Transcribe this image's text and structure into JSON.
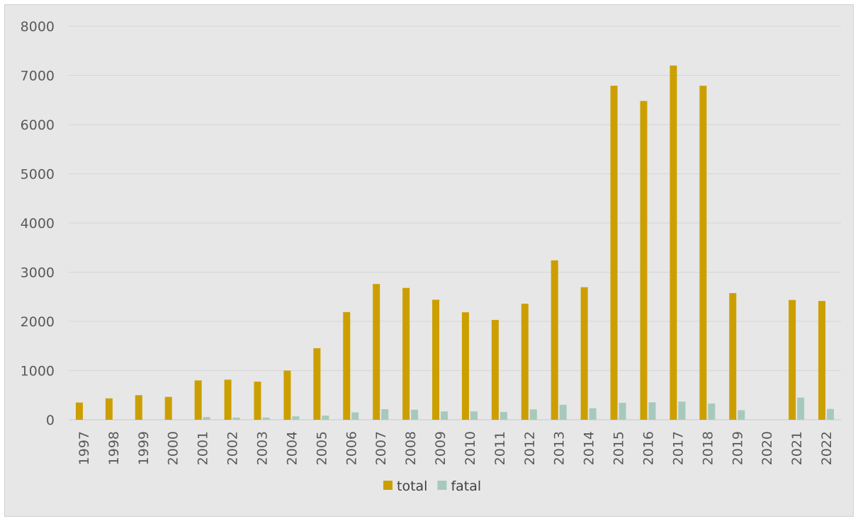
{
  "chart_data": {
    "type": "bar",
    "categories": [
      "1997",
      "1998",
      "1999",
      "2000",
      "2001",
      "2002",
      "2003",
      "2004",
      "2005",
      "2006",
      "2007",
      "2008",
      "2009",
      "2010",
      "2011",
      "2012",
      "2013",
      "2014",
      "2015",
      "2016",
      "2017",
      "2018",
      "2019",
      "2020",
      "2021",
      "2022"
    ],
    "series": [
      {
        "name": "total",
        "color": "#cc9f00",
        "values": [
          350,
          435,
          500,
          465,
          800,
          815,
          775,
          1000,
          1455,
          2190,
          2760,
          2680,
          2440,
          2185,
          2030,
          2360,
          3240,
          2695,
          6790,
          6480,
          7200,
          6790,
          2575,
          0,
          2435,
          2415
        ]
      },
      {
        "name": "fatal",
        "color": "#a7c9bb",
        "values": [
          0,
          0,
          0,
          0,
          55,
          45,
          45,
          70,
          85,
          150,
          215,
          205,
          170,
          170,
          160,
          210,
          305,
          235,
          345,
          355,
          370,
          330,
          195,
          0,
          450,
          220
        ]
      }
    ],
    "ylim": [
      0,
      8000
    ],
    "yticks": [
      "0",
      "1000",
      "2000",
      "3000",
      "4000",
      "5000",
      "6000",
      "7000",
      "8000"
    ],
    "grid": true,
    "legend_position": "bottom",
    "title": "",
    "xlabel": "",
    "ylabel": ""
  }
}
